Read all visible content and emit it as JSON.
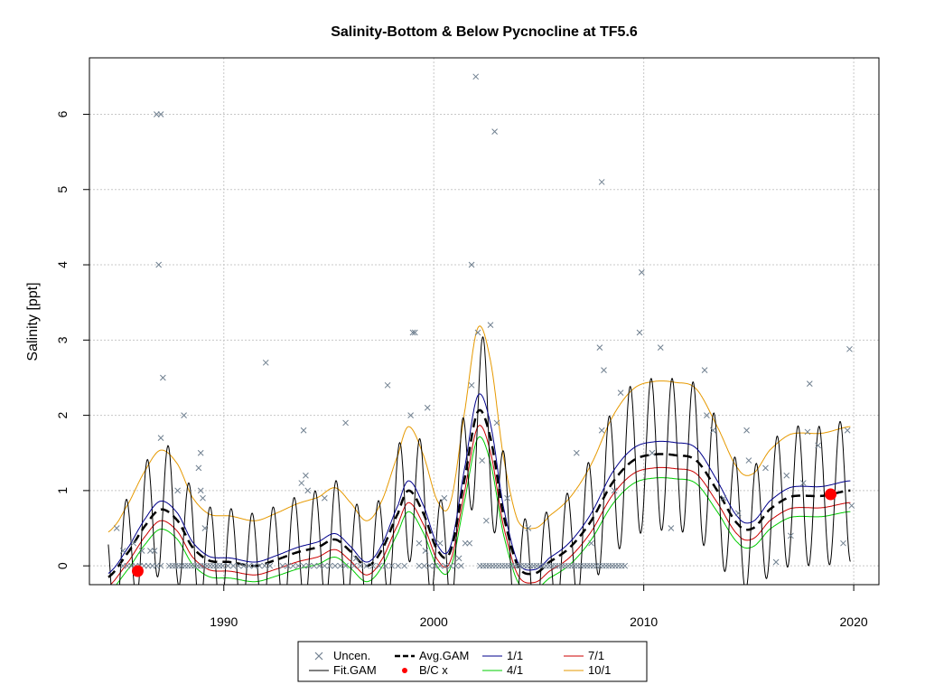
{
  "chart_data": {
    "type": "line",
    "title": "Salinity-Bottom & Below Pycnocline at TF5.6",
    "xlabel": "",
    "ylabel": "Salinity [ppt]",
    "xlim": [
      1983.6,
      2021.2
    ],
    "ylim": [
      -0.25,
      6.75
    ],
    "x_ticks": [
      1990,
      2000,
      2010,
      2020
    ],
    "y_ticks": [
      0,
      1,
      2,
      3,
      4,
      5,
      6
    ],
    "grid": true,
    "legend_position": "bottom",
    "legend": [
      {
        "label": "Uncen.",
        "symbol": "x",
        "color": "#708090"
      },
      {
        "label": "Fit.GAM",
        "symbol": "line",
        "color": "#000000"
      },
      {
        "label": "Avg.GAM",
        "symbol": "dashed-line",
        "color": "#000000"
      },
      {
        "label": "B/C x",
        "symbol": "dot",
        "color": "#ff0000"
      },
      {
        "label": "1/1",
        "symbol": "line",
        "color": "#00008b"
      },
      {
        "label": "4/1",
        "symbol": "line",
        "color": "#00cc00"
      },
      {
        "label": "7/1",
        "symbol": "line",
        "color": "#cc0000"
      },
      {
        "label": "10/1",
        "symbol": "line",
        "color": "#e69900"
      }
    ],
    "colors": {
      "uncen": "#708090",
      "fit": "#000000",
      "avg": "#000000",
      "bc": "#ff0000",
      "d1_1": "#00008b",
      "d4_1": "#00cc00",
      "d7_1": "#cc0000",
      "d10_1": "#e69900",
      "grid": "#c8c8c8"
    },
    "avg_gam_knots": [
      [
        1984.5,
        -0.15
      ],
      [
        1985.5,
        0.2
      ],
      [
        1986.3,
        0.55
      ],
      [
        1987.0,
        0.75
      ],
      [
        1987.8,
        0.6
      ],
      [
        1988.5,
        0.25
      ],
      [
        1989.3,
        0.07
      ],
      [
        1990.3,
        0.05
      ],
      [
        1991.5,
        0.0
      ],
      [
        1992.5,
        0.08
      ],
      [
        1993.5,
        0.18
      ],
      [
        1994.5,
        0.25
      ],
      [
        1995.3,
        0.35
      ],
      [
        1996.0,
        0.2
      ],
      [
        1996.8,
        0.0
      ],
      [
        1997.5,
        0.2
      ],
      [
        1998.3,
        0.7
      ],
      [
        1998.8,
        1.0
      ],
      [
        1999.5,
        0.7
      ],
      [
        2000.2,
        0.2
      ],
      [
        2000.8,
        0.2
      ],
      [
        2001.5,
        1.2
      ],
      [
        2002.1,
        2.05
      ],
      [
        2002.7,
        1.7
      ],
      [
        2003.3,
        0.7
      ],
      [
        2004.0,
        0.0
      ],
      [
        2004.8,
        -0.1
      ],
      [
        2005.5,
        0.05
      ],
      [
        2006.5,
        0.25
      ],
      [
        2007.5,
        0.6
      ],
      [
        2008.5,
        1.1
      ],
      [
        2009.5,
        1.4
      ],
      [
        2010.5,
        1.48
      ],
      [
        2011.5,
        1.47
      ],
      [
        2012.5,
        1.4
      ],
      [
        2013.5,
        1.0
      ],
      [
        2014.5,
        0.55
      ],
      [
        2015.2,
        0.5
      ],
      [
        2016.0,
        0.75
      ],
      [
        2017.0,
        0.92
      ],
      [
        2018.5,
        0.93
      ],
      [
        2019.8,
        1.0
      ]
    ],
    "fit_amplitude": 0.7,
    "band_offsets": {
      "d1_1": 0.05,
      "d4_1": -0.35,
      "d7_1": -0.2,
      "d10_1": 0.6
    },
    "bc_points": [
      [
        1985.9,
        -0.07
      ],
      [
        2018.9,
        0.95
      ]
    ],
    "uncen_points": [
      [
        1984.9,
        0.5
      ],
      [
        1985.2,
        0.2
      ],
      [
        1985.7,
        0.3
      ],
      [
        1986.1,
        0.2
      ],
      [
        1986.5,
        0.2
      ],
      [
        1986.7,
        0.2
      ],
      [
        1986.8,
        6.0
      ],
      [
        1987.0,
        6.0
      ],
      [
        1986.9,
        4.0
      ],
      [
        1987.0,
        1.7
      ],
      [
        1987.1,
        2.5
      ],
      [
        1987.8,
        1.0
      ],
      [
        1988.1,
        2.0
      ],
      [
        1988.9,
        1.5
      ],
      [
        1988.8,
        1.3
      ],
      [
        1988.9,
        1.0
      ],
      [
        1989.0,
        0.9
      ],
      [
        1989.1,
        0.5
      ],
      [
        1992.0,
        2.7
      ],
      [
        1993.8,
        1.8
      ],
      [
        1993.7,
        1.1
      ],
      [
        1993.9,
        1.2
      ],
      [
        1994.0,
        1.0
      ],
      [
        1994.8,
        0.9
      ],
      [
        1995.8,
        1.9
      ],
      [
        1996.3,
        0.1
      ],
      [
        1997.8,
        2.4
      ],
      [
        1998.9,
        2.0
      ],
      [
        1999.0,
        3.1
      ],
      [
        1999.1,
        3.1
      ],
      [
        1999.3,
        0.3
      ],
      [
        1999.6,
        0.2
      ],
      [
        1999.7,
        2.1
      ],
      [
        2000.3,
        0.3
      ],
      [
        2000.5,
        0.9
      ],
      [
        2001.2,
        0.1
      ],
      [
        2001.5,
        0.3
      ],
      [
        2001.7,
        0.3
      ],
      [
        2001.8,
        2.4
      ],
      [
        2001.8,
        4.0
      ],
      [
        2002.0,
        6.5
      ],
      [
        2002.1,
        3.1
      ],
      [
        2002.3,
        1.4
      ],
      [
        2002.5,
        0.6
      ],
      [
        2002.7,
        3.2
      ],
      [
        2002.9,
        5.77
      ],
      [
        2003.0,
        1.9
      ],
      [
        2003.5,
        0.9
      ],
      [
        2004.5,
        0.5
      ],
      [
        2006.8,
        1.5
      ],
      [
        2007.5,
        0.3
      ],
      [
        2007.9,
        2.9
      ],
      [
        2008.0,
        5.1
      ],
      [
        2008.1,
        2.6
      ],
      [
        2008.0,
        1.8
      ],
      [
        2008.6,
        1.0
      ],
      [
        2008.9,
        2.3
      ],
      [
        2009.8,
        3.1
      ],
      [
        2009.9,
        3.9
      ],
      [
        2010.4,
        1.5
      ],
      [
        2010.8,
        2.9
      ],
      [
        2011.3,
        0.5
      ],
      [
        2012.9,
        2.6
      ],
      [
        2013.0,
        2.0
      ],
      [
        2013.3,
        1.8
      ],
      [
        2013.8,
        0.9
      ],
      [
        2014.5,
        0.7
      ],
      [
        2014.9,
        1.8
      ],
      [
        2015.0,
        1.4
      ],
      [
        2015.8,
        1.3
      ],
      [
        2016.3,
        0.05
      ],
      [
        2016.8,
        1.2
      ],
      [
        2017.0,
        0.4
      ],
      [
        2017.6,
        1.1
      ],
      [
        2017.8,
        1.78
      ],
      [
        2017.9,
        2.42
      ],
      [
        2018.3,
        1.6
      ],
      [
        2019.5,
        0.3
      ],
      [
        2019.7,
        1.8
      ],
      [
        2019.8,
        2.88
      ],
      [
        2019.9,
        0.8
      ]
    ],
    "zero_rows": [
      {
        "from": 1985.2,
        "to": 1987.0,
        "step": 0.2
      },
      {
        "from": 1987.4,
        "to": 1990.0,
        "step": 0.15
      },
      {
        "from": 1990.2,
        "to": 1992.4,
        "step": 0.25
      },
      {
        "from": 1992.8,
        "to": 1996.0,
        "step": 0.25
      },
      {
        "from": 1996.2,
        "to": 1998.8,
        "step": 0.3
      },
      {
        "from": 1999.3,
        "to": 2001.4,
        "step": 0.25
      },
      {
        "from": 2002.2,
        "to": 2009.2,
        "step": 0.15
      }
    ]
  }
}
